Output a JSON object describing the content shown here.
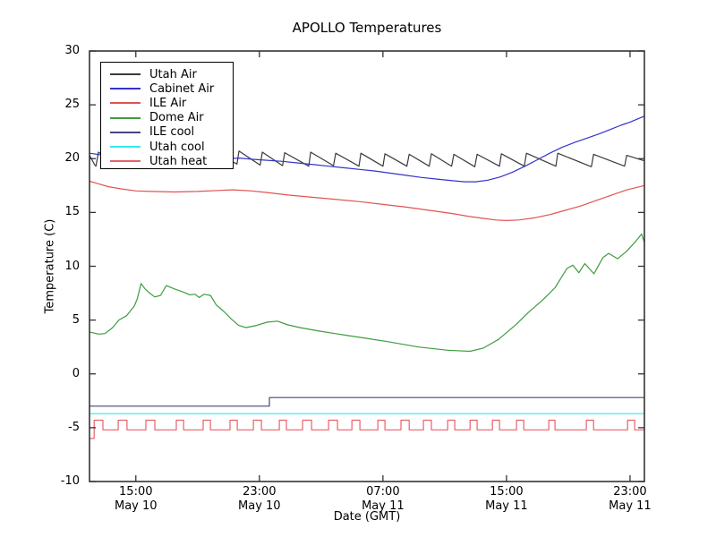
{
  "figure": {
    "title": "APOLLO Temperatures",
    "xlabel": "Date (GMT)",
    "ylabel": "Temperature (C)"
  },
  "chart_data": {
    "type": "line",
    "title": "APOLLO Temperatures",
    "xlabel": "Date (GMT)",
    "ylabel": "Temperature (C)",
    "x_unit_note": "x values are hours after May 10 00:00 GMT, read from axis ticks",
    "xlim": [
      12.0,
      47.93
    ],
    "ylim": [
      -10,
      30
    ],
    "grid": false,
    "legend_position": "upper-left",
    "yticks": [
      {
        "value": 30,
        "label": "30"
      },
      {
        "value": 25,
        "label": "25"
      },
      {
        "value": 20,
        "label": "20"
      },
      {
        "value": 15,
        "label": "15"
      },
      {
        "value": 10,
        "label": "10"
      },
      {
        "value": 5,
        "label": "5"
      },
      {
        "value": 0,
        "label": "0"
      },
      {
        "value": -5,
        "label": "-5"
      },
      {
        "value": -10,
        "label": "-10"
      }
    ],
    "xticks": [
      {
        "value": 15,
        "time": "15:00",
        "date": "May 10"
      },
      {
        "value": 23,
        "time": "23:00",
        "date": "May 10"
      },
      {
        "value": 31,
        "time": "07:00",
        "date": "May 11"
      },
      {
        "value": 39,
        "time": "15:00",
        "date": "May 11"
      },
      {
        "value": 47,
        "time": "23:00",
        "date": "May 11"
      }
    ],
    "series": [
      {
        "name": "Utah Air",
        "color": "#3a3a3a",
        "points": [
          [
            12.0,
            20.3
          ],
          [
            12.35,
            19.4
          ],
          [
            12.42,
            19.3
          ],
          [
            12.58,
            20.6
          ],
          [
            13.95,
            19.4
          ],
          [
            14.09,
            20.6
          ],
          [
            15.45,
            19.4
          ],
          [
            15.59,
            20.55
          ],
          [
            16.95,
            19.35
          ],
          [
            17.1,
            20.5
          ],
          [
            18.5,
            19.35
          ],
          [
            18.61,
            20.5
          ],
          [
            20.0,
            19.4
          ],
          [
            20.12,
            20.6
          ],
          [
            21.55,
            19.5
          ],
          [
            21.68,
            20.7
          ],
          [
            23.05,
            19.4
          ],
          [
            23.19,
            20.6
          ],
          [
            24.5,
            19.35
          ],
          [
            24.64,
            20.55
          ],
          [
            26.2,
            19.3
          ],
          [
            26.32,
            20.6
          ],
          [
            27.8,
            19.35
          ],
          [
            27.94,
            20.5
          ],
          [
            29.45,
            19.3
          ],
          [
            29.57,
            20.5
          ],
          [
            31.0,
            19.3
          ],
          [
            31.13,
            20.45
          ],
          [
            32.55,
            19.3
          ],
          [
            32.7,
            20.4
          ],
          [
            34.0,
            19.3
          ],
          [
            34.14,
            20.45
          ],
          [
            35.45,
            19.3
          ],
          [
            35.59,
            20.4
          ],
          [
            36.95,
            19.25
          ],
          [
            37.1,
            20.4
          ],
          [
            38.55,
            19.3
          ],
          [
            38.67,
            20.45
          ],
          [
            40.15,
            19.3
          ],
          [
            40.29,
            20.5
          ],
          [
            42.2,
            19.3
          ],
          [
            42.32,
            20.5
          ],
          [
            44.5,
            19.25
          ],
          [
            44.64,
            20.4
          ],
          [
            46.65,
            19.3
          ],
          [
            46.78,
            20.3
          ],
          [
            47.93,
            19.8
          ]
        ]
      },
      {
        "name": "Cabinet Air",
        "color": "#3333cc",
        "points": [
          [
            12.0,
            20.5
          ],
          [
            13.0,
            20.3
          ],
          [
            14.0,
            20.2
          ],
          [
            15.0,
            20.15
          ],
          [
            16.0,
            20.1
          ],
          [
            17.0,
            20.05
          ],
          [
            18.0,
            20.0
          ],
          [
            19.0,
            19.95
          ],
          [
            20.0,
            19.95
          ],
          [
            21.0,
            20.0
          ],
          [
            21.7,
            20.05
          ],
          [
            22.5,
            19.95
          ],
          [
            23.5,
            19.85
          ],
          [
            24.5,
            19.75
          ],
          [
            25.5,
            19.6
          ],
          [
            26.5,
            19.45
          ],
          [
            27.5,
            19.3
          ],
          [
            28.5,
            19.15
          ],
          [
            29.5,
            19.0
          ],
          [
            30.5,
            18.85
          ],
          [
            31.5,
            18.65
          ],
          [
            32.5,
            18.45
          ],
          [
            33.5,
            18.25
          ],
          [
            34.5,
            18.1
          ],
          [
            35.5,
            17.95
          ],
          [
            36.3,
            17.85
          ],
          [
            37.0,
            17.85
          ],
          [
            37.8,
            18.0
          ],
          [
            38.6,
            18.3
          ],
          [
            39.4,
            18.75
          ],
          [
            40.2,
            19.3
          ],
          [
            41.0,
            19.9
          ],
          [
            41.8,
            20.5
          ],
          [
            42.6,
            21.05
          ],
          [
            43.4,
            21.5
          ],
          [
            44.2,
            21.9
          ],
          [
            45.0,
            22.3
          ],
          [
            45.7,
            22.7
          ],
          [
            46.4,
            23.1
          ],
          [
            47.0,
            23.4
          ],
          [
            47.5,
            23.7
          ],
          [
            47.93,
            23.95
          ]
        ]
      },
      {
        "name": "ILE Air",
        "color": "#e05353",
        "points": [
          [
            12.0,
            17.9
          ],
          [
            12.5,
            17.7
          ],
          [
            13.2,
            17.4
          ],
          [
            14.0,
            17.2
          ],
          [
            15.0,
            17.0
          ],
          [
            16.0,
            16.95
          ],
          [
            17.5,
            16.9
          ],
          [
            19.0,
            16.95
          ],
          [
            20.5,
            17.05
          ],
          [
            21.3,
            17.1
          ],
          [
            22.5,
            17.0
          ],
          [
            23.5,
            16.85
          ],
          [
            25.0,
            16.6
          ],
          [
            26.5,
            16.4
          ],
          [
            28.0,
            16.2
          ],
          [
            29.5,
            16.0
          ],
          [
            31.0,
            15.75
          ],
          [
            32.5,
            15.5
          ],
          [
            34.0,
            15.2
          ],
          [
            35.5,
            14.9
          ],
          [
            36.5,
            14.65
          ],
          [
            37.5,
            14.45
          ],
          [
            38.3,
            14.3
          ],
          [
            39.0,
            14.25
          ],
          [
            39.8,
            14.3
          ],
          [
            40.8,
            14.5
          ],
          [
            41.8,
            14.8
          ],
          [
            42.8,
            15.2
          ],
          [
            43.8,
            15.6
          ],
          [
            44.8,
            16.1
          ],
          [
            45.8,
            16.6
          ],
          [
            46.8,
            17.1
          ],
          [
            47.93,
            17.5
          ]
        ]
      },
      {
        "name": "Dome Air",
        "color": "#3f9b3f",
        "points": [
          [
            12.0,
            3.9
          ],
          [
            12.6,
            3.7
          ],
          [
            13.0,
            3.75
          ],
          [
            13.5,
            4.3
          ],
          [
            13.9,
            5.0
          ],
          [
            14.4,
            5.4
          ],
          [
            14.9,
            6.3
          ],
          [
            15.1,
            7.0
          ],
          [
            15.34,
            8.4
          ],
          [
            15.6,
            7.9
          ],
          [
            15.9,
            7.5
          ],
          [
            16.23,
            7.15
          ],
          [
            16.6,
            7.3
          ],
          [
            16.97,
            8.2
          ],
          [
            17.5,
            7.9
          ],
          [
            18.09,
            7.6
          ],
          [
            18.5,
            7.35
          ],
          [
            18.84,
            7.4
          ],
          [
            19.1,
            7.1
          ],
          [
            19.42,
            7.4
          ],
          [
            19.83,
            7.3
          ],
          [
            20.21,
            6.4
          ],
          [
            20.7,
            5.8
          ],
          [
            21.18,
            5.1
          ],
          [
            21.66,
            4.5
          ],
          [
            22.14,
            4.3
          ],
          [
            22.82,
            4.5
          ],
          [
            23.5,
            4.8
          ],
          [
            24.17,
            4.9
          ],
          [
            24.85,
            4.55
          ],
          [
            25.62,
            4.3
          ],
          [
            26.78,
            4.0
          ],
          [
            28.13,
            3.7
          ],
          [
            29.49,
            3.4
          ],
          [
            31.3,
            3.0
          ],
          [
            33.28,
            2.5
          ],
          [
            35.2,
            2.2
          ],
          [
            36.64,
            2.1
          ],
          [
            37.5,
            2.4
          ],
          [
            38.48,
            3.2
          ],
          [
            39.63,
            4.6
          ],
          [
            40.41,
            5.7
          ],
          [
            41.37,
            6.9
          ],
          [
            42.14,
            8.0
          ],
          [
            42.92,
            9.8
          ],
          [
            43.3,
            10.1
          ],
          [
            43.69,
            9.4
          ],
          [
            44.07,
            10.25
          ],
          [
            44.66,
            9.3
          ],
          [
            45.24,
            10.8
          ],
          [
            45.62,
            11.2
          ],
          [
            46.2,
            10.7
          ],
          [
            46.78,
            11.4
          ],
          [
            47.36,
            12.3
          ],
          [
            47.75,
            13.0
          ],
          [
            47.93,
            12.2
          ]
        ]
      },
      {
        "name": "ILE cool",
        "color": "#46467e",
        "points": [
          [
            12.0,
            -3.0
          ],
          [
            23.65,
            -3.0
          ],
          [
            23.65,
            -2.2
          ],
          [
            47.93,
            -2.2
          ]
        ]
      },
      {
        "name": "Utah cool",
        "color": "#33eaea",
        "points": [
          [
            12.0,
            -3.7
          ],
          [
            47.93,
            -3.7
          ]
        ]
      },
      {
        "name": "Utah heat",
        "color": "#e8606a",
        "points": [
          [
            12.0,
            -6.0
          ],
          [
            12.3,
            -6.0
          ],
          [
            12.3,
            -4.3
          ],
          [
            12.87,
            -4.3
          ],
          [
            12.87,
            -5.2
          ],
          [
            13.86,
            -5.2
          ],
          [
            13.86,
            -4.3
          ],
          [
            14.43,
            -4.3
          ],
          [
            14.43,
            -5.2
          ],
          [
            15.65,
            -5.2
          ],
          [
            15.65,
            -4.3
          ],
          [
            16.23,
            -4.3
          ],
          [
            16.23,
            -5.2
          ],
          [
            17.62,
            -5.2
          ],
          [
            17.62,
            -4.3
          ],
          [
            18.09,
            -4.3
          ],
          [
            18.09,
            -5.2
          ],
          [
            19.36,
            -5.2
          ],
          [
            19.36,
            -4.3
          ],
          [
            19.83,
            -4.3
          ],
          [
            19.83,
            -5.2
          ],
          [
            21.1,
            -5.2
          ],
          [
            21.1,
            -4.3
          ],
          [
            21.57,
            -4.3
          ],
          [
            21.57,
            -5.2
          ],
          [
            22.61,
            -5.2
          ],
          [
            22.61,
            -4.3
          ],
          [
            23.13,
            -4.3
          ],
          [
            23.13,
            -5.2
          ],
          [
            24.29,
            -5.2
          ],
          [
            24.29,
            -4.3
          ],
          [
            24.75,
            -4.3
          ],
          [
            24.75,
            -5.2
          ],
          [
            25.8,
            -5.2
          ],
          [
            25.8,
            -4.3
          ],
          [
            26.38,
            -4.3
          ],
          [
            26.38,
            -5.2
          ],
          [
            27.48,
            -5.2
          ],
          [
            27.48,
            -4.3
          ],
          [
            28.06,
            -4.3
          ],
          [
            28.06,
            -5.2
          ],
          [
            28.99,
            -5.2
          ],
          [
            28.99,
            -4.3
          ],
          [
            29.51,
            -4.3
          ],
          [
            29.51,
            -5.2
          ],
          [
            30.67,
            -5.2
          ],
          [
            30.67,
            -4.3
          ],
          [
            31.13,
            -4.3
          ],
          [
            31.13,
            -5.2
          ],
          [
            32.17,
            -5.2
          ],
          [
            32.17,
            -4.3
          ],
          [
            32.7,
            -4.3
          ],
          [
            32.7,
            -5.2
          ],
          [
            33.62,
            -5.2
          ],
          [
            33.62,
            -4.3
          ],
          [
            34.14,
            -4.3
          ],
          [
            34.14,
            -5.2
          ],
          [
            35.19,
            -5.2
          ],
          [
            35.19,
            -4.3
          ],
          [
            35.65,
            -4.3
          ],
          [
            35.65,
            -5.2
          ],
          [
            36.64,
            -5.2
          ],
          [
            36.64,
            -4.3
          ],
          [
            37.1,
            -4.3
          ],
          [
            37.1,
            -5.2
          ],
          [
            38.09,
            -5.2
          ],
          [
            38.09,
            -4.3
          ],
          [
            38.55,
            -4.3
          ],
          [
            38.55,
            -5.2
          ],
          [
            39.65,
            -5.2
          ],
          [
            39.65,
            -4.3
          ],
          [
            40.12,
            -4.3
          ],
          [
            40.12,
            -5.2
          ],
          [
            41.74,
            -5.2
          ],
          [
            41.74,
            -4.3
          ],
          [
            42.14,
            -4.3
          ],
          [
            42.14,
            -5.2
          ],
          [
            44.17,
            -5.2
          ],
          [
            44.17,
            -4.3
          ],
          [
            44.64,
            -4.3
          ],
          [
            44.64,
            -5.2
          ],
          [
            46.84,
            -5.2
          ],
          [
            46.84,
            -4.3
          ],
          [
            47.3,
            -4.3
          ],
          [
            47.3,
            -5.2
          ],
          [
            47.93,
            -5.2
          ]
        ]
      }
    ]
  }
}
